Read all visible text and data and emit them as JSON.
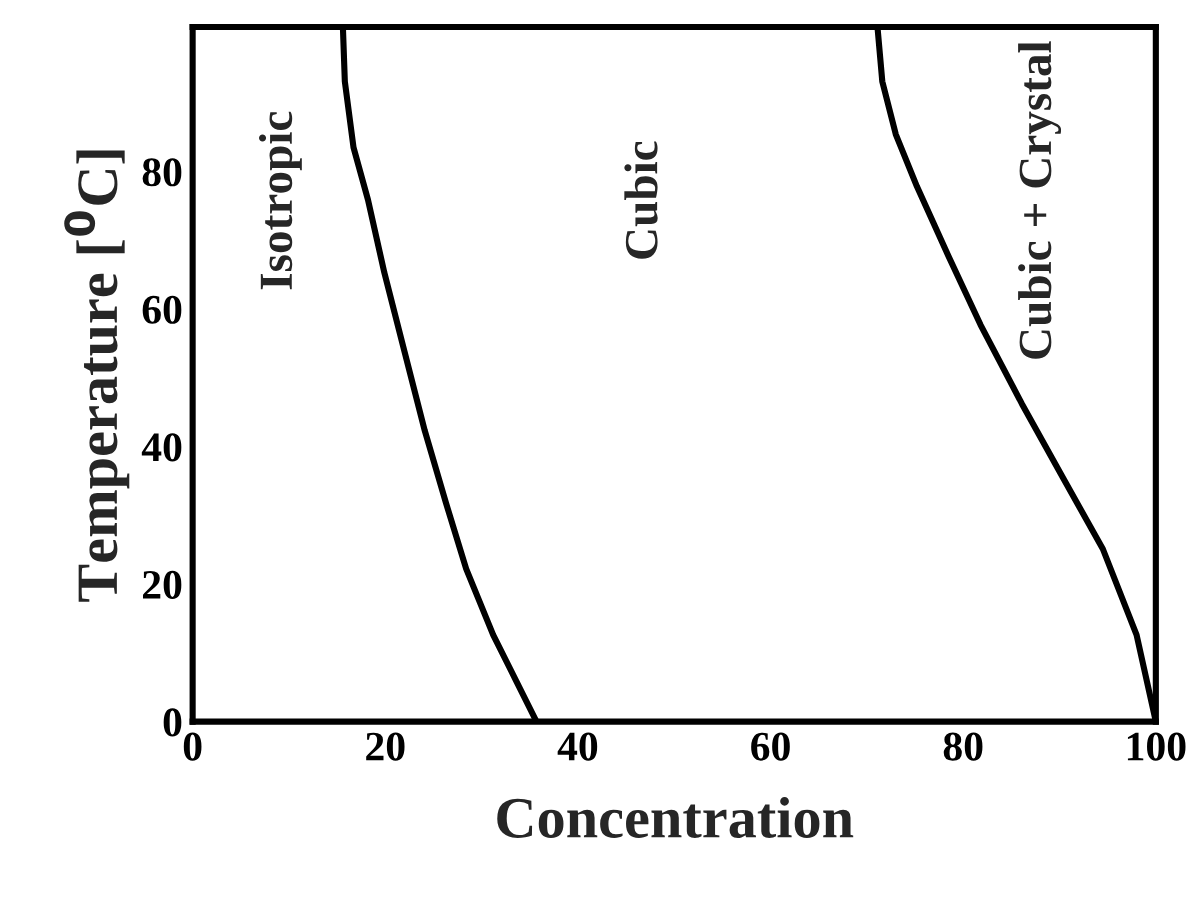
{
  "chart_data": {
    "type": "line",
    "xlabel": "Concentration",
    "ylabel": "Temperature [$^{0}$C]",
    "xlim": [
      0,
      100
    ],
    "ylim": [
      0,
      101
    ],
    "xticks": [
      0,
      20,
      40,
      60,
      80,
      100
    ],
    "yticks": [
      0,
      20,
      40,
      60,
      80
    ],
    "grid": false,
    "legend": false,
    "marker": "none",
    "line_style": "solid",
    "series": [
      {
        "color": "#000000",
        "x": [
          15.6,
          15.8,
          16.7,
          18.2,
          19.9,
          22.0,
          24.1,
          26.3,
          28.4,
          31.2,
          33.6,
          35.7
        ],
        "values": [
          101,
          93.1,
          83.5,
          75.9,
          65.3,
          53.8,
          42.3,
          31.8,
          22.2,
          12.6,
          5.9,
          0
        ]
      },
      {
        "color": "#000000",
        "x": [
          71.1,
          71.6,
          73.0,
          75.2,
          78.3,
          81.8,
          86.1,
          90.3,
          94.5,
          98.0,
          100
        ],
        "values": [
          101,
          93.1,
          85.4,
          77.8,
          68.2,
          57.7,
          46.2,
          35.6,
          25.1,
          12.6,
          0
        ]
      }
    ],
    "annotations": [
      "Isotropic",
      "Cubic",
      "Cubic + Crystal"
    ]
  }
}
